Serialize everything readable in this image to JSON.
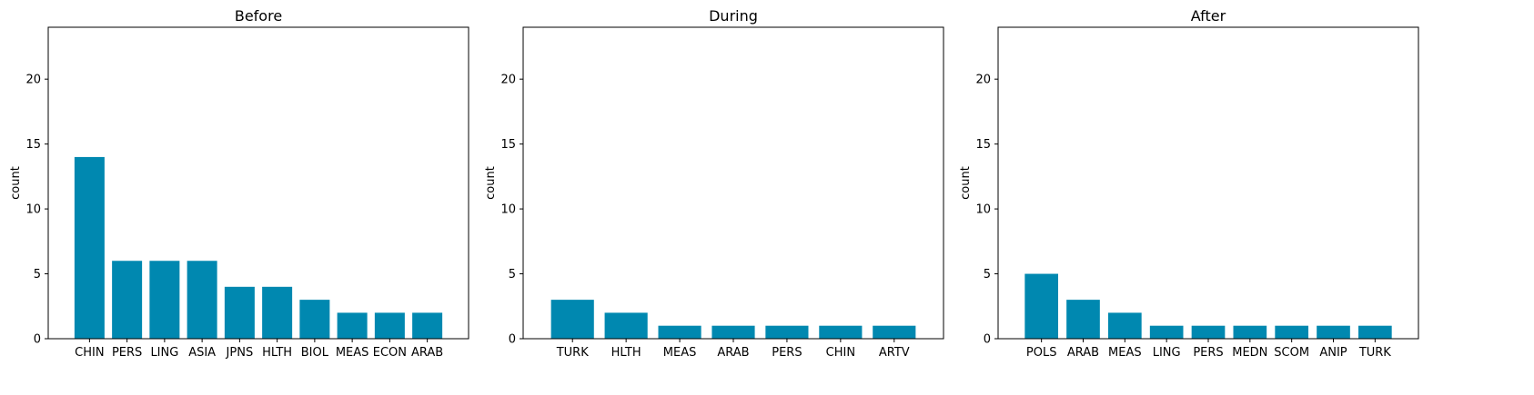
{
  "bar_color": "#0088b0",
  "chart_data": [
    {
      "type": "bar",
      "title": "Before",
      "xlabel": "",
      "ylabel": "count",
      "ylim": [
        0,
        24
      ],
      "yticks": [
        0,
        5,
        10,
        15,
        20
      ],
      "grid": false,
      "categories": [
        "CHIN",
        "PERS",
        "LING",
        "ASIA",
        "JPNS",
        "HLTH",
        "BIOL",
        "MEAS",
        "ECON",
        "ARAB"
      ],
      "values": [
        14,
        6,
        6,
        6,
        4,
        4,
        3,
        2,
        2,
        2
      ]
    },
    {
      "type": "bar",
      "title": "During",
      "xlabel": "",
      "ylabel": "count",
      "ylim": [
        0,
        24
      ],
      "yticks": [
        0,
        5,
        10,
        15,
        20
      ],
      "grid": false,
      "categories": [
        "TURK",
        "HLTH",
        "MEAS",
        "ARAB",
        "PERS",
        "CHIN",
        "ARTV"
      ],
      "values": [
        3,
        2,
        1,
        1,
        1,
        1,
        1
      ]
    },
    {
      "type": "bar",
      "title": "After",
      "xlabel": "",
      "ylabel": "count",
      "ylim": [
        0,
        24
      ],
      "yticks": [
        0,
        5,
        10,
        15,
        20
      ],
      "grid": false,
      "categories": [
        "POLS",
        "ARAB",
        "MEAS",
        "LING",
        "PERS",
        "MEDN",
        "SCOM",
        "ANIP",
        "TURK"
      ],
      "values": [
        5,
        3,
        2,
        1,
        1,
        1,
        1,
        1,
        1
      ]
    }
  ]
}
